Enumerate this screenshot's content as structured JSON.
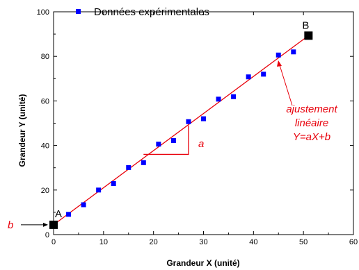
{
  "chart_data": {
    "type": "scatter",
    "xlabel": "Grandeur X (unité)",
    "ylabel": "Grandeur Y (unité)",
    "xlim": [
      0,
      60
    ],
    "ylim": [
      0,
      100
    ],
    "x_ticks": [
      0,
      10,
      20,
      30,
      40,
      50,
      60
    ],
    "y_ticks": [
      0,
      20,
      40,
      60,
      80,
      100
    ],
    "legend_position": "top-left",
    "series": [
      {
        "name": "Données expérimentales",
        "color": "#0000ff",
        "marker": "square",
        "points": [
          [
            3,
            9.1
          ],
          [
            6,
            13.4
          ],
          [
            9,
            20.0
          ],
          [
            12,
            22.9
          ],
          [
            15,
            30.1
          ],
          [
            18,
            32.3
          ],
          [
            21,
            40.6
          ],
          [
            24,
            42.2
          ],
          [
            27,
            50.7
          ],
          [
            30,
            52.0
          ],
          [
            33,
            60.8
          ],
          [
            36,
            61.9
          ],
          [
            39,
            70.8
          ],
          [
            42,
            72.0
          ],
          [
            45,
            80.6
          ],
          [
            48,
            82.0
          ]
        ]
      }
    ],
    "fit_line": {
      "color": "#e8000b",
      "x": [
        0,
        51
      ],
      "y": [
        4.4,
        89.3
      ]
    },
    "special_points": [
      {
        "label": "A",
        "x": 0,
        "y": 4.4,
        "color": "#000000"
      },
      {
        "label": "B",
        "x": 51,
        "y": 89.3,
        "color": "#000000"
      }
    ],
    "slope_triangle": {
      "x1": 18,
      "x2": 27,
      "y1": 36.0,
      "y2": 49.0,
      "label": "a"
    },
    "annotations": {
      "intercept_label": "b",
      "fit_label_lines": [
        "ajustement",
        "linéaire",
        "Y=aX+b"
      ]
    }
  }
}
